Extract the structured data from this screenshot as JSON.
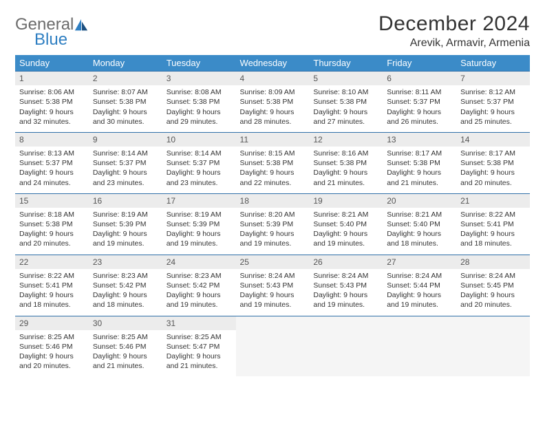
{
  "brand": {
    "general": "General",
    "blue": "Blue"
  },
  "title": "December 2024",
  "location": "Arevik, Armavir, Armenia",
  "colors": {
    "header_bg": "#3b8bc8",
    "header_text": "#ffffff",
    "daynum_bg": "#ececec",
    "border": "#2f6fa8",
    "logo_gray": "#6b6b6b",
    "logo_blue": "#2f7fc2"
  },
  "weekdays": [
    "Sunday",
    "Monday",
    "Tuesday",
    "Wednesday",
    "Thursday",
    "Friday",
    "Saturday"
  ],
  "weeks": [
    [
      {
        "n": "1",
        "sr": "8:06 AM",
        "ss": "5:38 PM",
        "dl": "9 hours and 32 minutes."
      },
      {
        "n": "2",
        "sr": "8:07 AM",
        "ss": "5:38 PM",
        "dl": "9 hours and 30 minutes."
      },
      {
        "n": "3",
        "sr": "8:08 AM",
        "ss": "5:38 PM",
        "dl": "9 hours and 29 minutes."
      },
      {
        "n": "4",
        "sr": "8:09 AM",
        "ss": "5:38 PM",
        "dl": "9 hours and 28 minutes."
      },
      {
        "n": "5",
        "sr": "8:10 AM",
        "ss": "5:38 PM",
        "dl": "9 hours and 27 minutes."
      },
      {
        "n": "6",
        "sr": "8:11 AM",
        "ss": "5:37 PM",
        "dl": "9 hours and 26 minutes."
      },
      {
        "n": "7",
        "sr": "8:12 AM",
        "ss": "5:37 PM",
        "dl": "9 hours and 25 minutes."
      }
    ],
    [
      {
        "n": "8",
        "sr": "8:13 AM",
        "ss": "5:37 PM",
        "dl": "9 hours and 24 minutes."
      },
      {
        "n": "9",
        "sr": "8:14 AM",
        "ss": "5:37 PM",
        "dl": "9 hours and 23 minutes."
      },
      {
        "n": "10",
        "sr": "8:14 AM",
        "ss": "5:37 PM",
        "dl": "9 hours and 23 minutes."
      },
      {
        "n": "11",
        "sr": "8:15 AM",
        "ss": "5:38 PM",
        "dl": "9 hours and 22 minutes."
      },
      {
        "n": "12",
        "sr": "8:16 AM",
        "ss": "5:38 PM",
        "dl": "9 hours and 21 minutes."
      },
      {
        "n": "13",
        "sr": "8:17 AM",
        "ss": "5:38 PM",
        "dl": "9 hours and 21 minutes."
      },
      {
        "n": "14",
        "sr": "8:17 AM",
        "ss": "5:38 PM",
        "dl": "9 hours and 20 minutes."
      }
    ],
    [
      {
        "n": "15",
        "sr": "8:18 AM",
        "ss": "5:38 PM",
        "dl": "9 hours and 20 minutes."
      },
      {
        "n": "16",
        "sr": "8:19 AM",
        "ss": "5:39 PM",
        "dl": "9 hours and 19 minutes."
      },
      {
        "n": "17",
        "sr": "8:19 AM",
        "ss": "5:39 PM",
        "dl": "9 hours and 19 minutes."
      },
      {
        "n": "18",
        "sr": "8:20 AM",
        "ss": "5:39 PM",
        "dl": "9 hours and 19 minutes."
      },
      {
        "n": "19",
        "sr": "8:21 AM",
        "ss": "5:40 PM",
        "dl": "9 hours and 19 minutes."
      },
      {
        "n": "20",
        "sr": "8:21 AM",
        "ss": "5:40 PM",
        "dl": "9 hours and 18 minutes."
      },
      {
        "n": "21",
        "sr": "8:22 AM",
        "ss": "5:41 PM",
        "dl": "9 hours and 18 minutes."
      }
    ],
    [
      {
        "n": "22",
        "sr": "8:22 AM",
        "ss": "5:41 PM",
        "dl": "9 hours and 18 minutes."
      },
      {
        "n": "23",
        "sr": "8:23 AM",
        "ss": "5:42 PM",
        "dl": "9 hours and 18 minutes."
      },
      {
        "n": "24",
        "sr": "8:23 AM",
        "ss": "5:42 PM",
        "dl": "9 hours and 19 minutes."
      },
      {
        "n": "25",
        "sr": "8:24 AM",
        "ss": "5:43 PM",
        "dl": "9 hours and 19 minutes."
      },
      {
        "n": "26",
        "sr": "8:24 AM",
        "ss": "5:43 PM",
        "dl": "9 hours and 19 minutes."
      },
      {
        "n": "27",
        "sr": "8:24 AM",
        "ss": "5:44 PM",
        "dl": "9 hours and 19 minutes."
      },
      {
        "n": "28",
        "sr": "8:24 AM",
        "ss": "5:45 PM",
        "dl": "9 hours and 20 minutes."
      }
    ],
    [
      {
        "n": "29",
        "sr": "8:25 AM",
        "ss": "5:46 PM",
        "dl": "9 hours and 20 minutes."
      },
      {
        "n": "30",
        "sr": "8:25 AM",
        "ss": "5:46 PM",
        "dl": "9 hours and 21 minutes."
      },
      {
        "n": "31",
        "sr": "8:25 AM",
        "ss": "5:47 PM",
        "dl": "9 hours and 21 minutes."
      },
      null,
      null,
      null,
      null
    ]
  ],
  "labels": {
    "sunrise": "Sunrise: ",
    "sunset": "Sunset: ",
    "daylight": "Daylight: "
  }
}
